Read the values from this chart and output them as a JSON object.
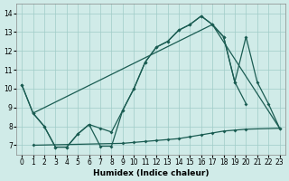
{
  "xlabel": "Humidex (Indice chaleur)",
  "ylabel": "",
  "background_color": "#d0ebe8",
  "line_color": "#1a5c52",
  "x_ticks": [
    0,
    1,
    2,
    3,
    4,
    5,
    6,
    7,
    8,
    9,
    10,
    11,
    12,
    13,
    14,
    15,
    16,
    17,
    18,
    19,
    20,
    21,
    22,
    23
  ],
  "y_ticks": [
    7,
    8,
    9,
    10,
    11,
    12,
    13,
    14
  ],
  "ylim": [
    6.5,
    14.5
  ],
  "xlim": [
    -0.5,
    23.5
  ],
  "series": [
    {
      "x": [
        0,
        1,
        2,
        3,
        4,
        5,
        6,
        7,
        8,
        9,
        10,
        11,
        12,
        13,
        14,
        15,
        16,
        17,
        18,
        19,
        20
      ],
      "y": [
        10.2,
        8.7,
        8.0,
        6.9,
        6.9,
        7.6,
        8.1,
        7.9,
        7.7,
        8.85,
        10.0,
        11.4,
        12.2,
        12.5,
        13.1,
        13.4,
        13.85,
        13.4,
        12.75,
        10.35,
        9.2
      ],
      "marker": true
    },
    {
      "x": [
        0,
        1,
        2,
        3,
        4,
        5,
        6,
        7,
        8,
        9,
        10,
        11,
        12,
        13,
        14,
        15,
        16,
        17,
        18,
        19,
        20,
        21,
        22,
        23
      ],
      "y": [
        10.2,
        8.7,
        8.0,
        6.9,
        6.9,
        7.6,
        8.1,
        6.95,
        6.95,
        8.85,
        10.0,
        11.4,
        12.2,
        12.5,
        13.1,
        13.4,
        13.85,
        13.4,
        12.75,
        10.35,
        12.75,
        10.35,
        9.2,
        7.9
      ],
      "marker": true
    },
    {
      "x": [
        1,
        17,
        23
      ],
      "y": [
        8.7,
        13.4,
        7.9
      ],
      "marker": false
    },
    {
      "x": [
        1,
        9,
        10,
        11,
        12,
        13,
        14,
        15,
        16,
        17,
        18,
        19,
        20,
        23
      ],
      "y": [
        7.0,
        7.1,
        7.15,
        7.2,
        7.25,
        7.3,
        7.35,
        7.45,
        7.55,
        7.65,
        7.75,
        7.8,
        7.85,
        7.9
      ],
      "marker": true
    }
  ]
}
